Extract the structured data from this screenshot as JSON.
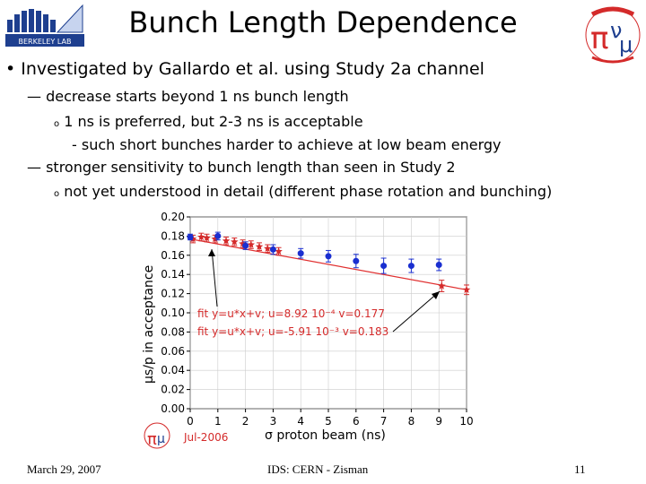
{
  "slide": {
    "title": "Bunch Length Dependence",
    "logo_text": "BERKELEY LAB",
    "bullet_main": "Investigated by Gallardo et al. using Study 2a channel",
    "items": [
      {
        "marker": "—",
        "text": "decrease starts beyond 1 ns bunch length"
      },
      {
        "marker": "o",
        "text": "1 ns is preferred, but 2-3 ns is acceptable"
      },
      {
        "marker": "-",
        "text": "such short bunches harder to achieve at low beam energy"
      },
      {
        "marker": "—",
        "text": "stronger sensitivity to bunch length than seen in Study 2"
      },
      {
        "marker": "o",
        "text": "not yet understood in detail (different phase rotation and bunching)"
      }
    ],
    "footer": {
      "date": "March 29, 2007",
      "center": "IDS: CERN - Zisman",
      "page": "11"
    }
  },
  "colors": {
    "red": "#d42a2a",
    "blue": "#1a2fd0",
    "fit_line": "#e03030",
    "logo_blue": "#1e3f8f"
  },
  "chart_data": {
    "type": "scatter",
    "xlabel": "σ proton beam (ns)",
    "ylabel": "μs/p in acceptance",
    "xlim": [
      0,
      10
    ],
    "ylim": [
      0,
      0.2
    ],
    "x_ticks": [
      "0",
      "1",
      "2",
      "3",
      "4",
      "5",
      "6",
      "7",
      "8",
      "9",
      "10"
    ],
    "y_ticks": [
      "0.00",
      "0.02",
      "0.04",
      "0.06",
      "0.08",
      "0.10",
      "0.12",
      "0.14",
      "0.16",
      "0.18",
      "0.20"
    ],
    "fit_labels": [
      "fit  y=u*x+v;  u=8.92  10⁻⁴  v=0.177",
      "fit  y=u*x+v;  u=-5.91  10⁻³  v=0.183"
    ],
    "date_label": "Jul-2006",
    "series": [
      {
        "color": "#d42a2a",
        "marker": "star",
        "points": [
          {
            "x": 0.1,
            "y": 0.177,
            "err": 0.004
          },
          {
            "x": 0.4,
            "y": 0.179,
            "err": 0.004
          },
          {
            "x": 0.6,
            "y": 0.178,
            "err": 0.004
          },
          {
            "x": 0.9,
            "y": 0.177,
            "err": 0.004
          },
          {
            "x": 1.3,
            "y": 0.175,
            "err": 0.004
          },
          {
            "x": 1.6,
            "y": 0.174,
            "err": 0.004
          },
          {
            "x": 1.9,
            "y": 0.172,
            "err": 0.004
          },
          {
            "x": 2.2,
            "y": 0.171,
            "err": 0.004
          },
          {
            "x": 2.5,
            "y": 0.169,
            "err": 0.004
          },
          {
            "x": 2.8,
            "y": 0.167,
            "err": 0.004
          },
          {
            "x": 3.2,
            "y": 0.164,
            "err": 0.004
          },
          {
            "x": 9.1,
            "y": 0.128,
            "err": 0.006
          },
          {
            "x": 10.0,
            "y": 0.124,
            "err": 0.005
          }
        ]
      },
      {
        "color": "#1a2fd0",
        "marker": "circle",
        "points": [
          {
            "x": 0.0,
            "y": 0.179,
            "err": 0.003
          },
          {
            "x": 1.0,
            "y": 0.18,
            "err": 0.004
          },
          {
            "x": 2.0,
            "y": 0.17,
            "err": 0.004
          },
          {
            "x": 3.0,
            "y": 0.166,
            "err": 0.005
          },
          {
            "x": 4.0,
            "y": 0.162,
            "err": 0.005
          },
          {
            "x": 5.0,
            "y": 0.159,
            "err": 0.006
          },
          {
            "x": 6.0,
            "y": 0.154,
            "err": 0.007
          },
          {
            "x": 7.0,
            "y": 0.149,
            "err": 0.008
          },
          {
            "x": 8.0,
            "y": 0.149,
            "err": 0.007
          },
          {
            "x": 9.0,
            "y": 0.15,
            "err": 0.006
          }
        ]
      }
    ],
    "fit_lines": [
      {
        "color": "#e03030",
        "x0": 0,
        "y0": 0.177,
        "x1": 10,
        "y1": 0.124
      }
    ]
  }
}
